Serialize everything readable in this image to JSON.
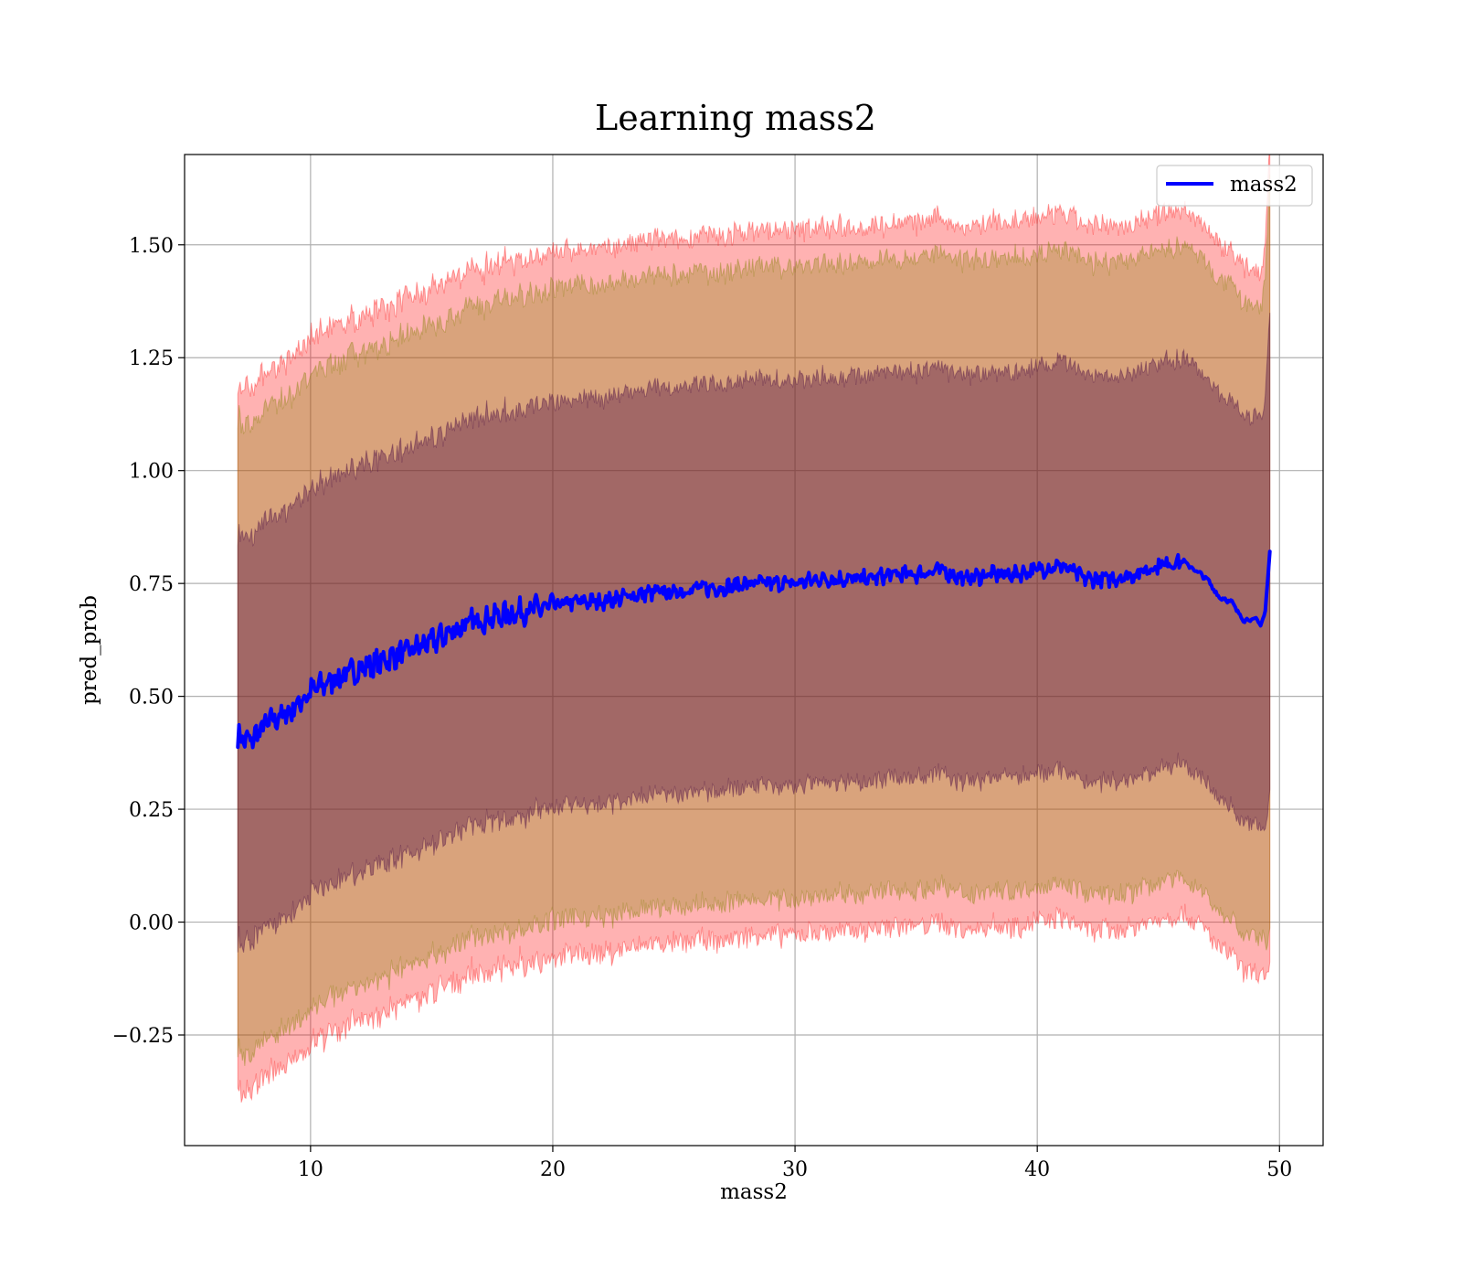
{
  "chart_data": {
    "type": "area",
    "title": "Learning mass2",
    "xlabel": "mass2",
    "ylabel": "pred_prob",
    "xlim": [
      4.8,
      51.8
    ],
    "ylim": [
      -0.495,
      1.7
    ],
    "xticks": [
      10,
      20,
      30,
      40,
      50
    ],
    "xtick_labels": [
      "10",
      "20",
      "30",
      "40",
      "50"
    ],
    "yticks": [
      -0.25,
      0.0,
      0.25,
      0.5,
      0.75,
      1.0,
      1.25,
      1.5
    ],
    "ytick_labels": [
      "−0.25",
      "0.00",
      "0.25",
      "0.50",
      "0.75",
      "1.00",
      "1.25",
      "1.50"
    ],
    "grid": true,
    "legend": {
      "position": "top-right",
      "entries": [
        "mass2"
      ]
    },
    "series": [
      {
        "name": "mass2",
        "color": "#0000ff",
        "x": [
          7.0,
          7.5,
          8.0,
          8.5,
          9.0,
          10.0,
          11.0,
          12.0,
          13.0,
          14.0,
          15.0,
          16.0,
          17.0,
          18.0,
          19.0,
          20.0,
          21.0,
          22.0,
          23.0,
          24.0,
          25.0,
          26.0,
          27.0,
          28.0,
          29.0,
          30.0,
          31.0,
          32.0,
          33.0,
          34.0,
          35.0,
          36.0,
          37.0,
          38.0,
          39.0,
          40.0,
          41.0,
          42.0,
          43.0,
          44.0,
          45.0,
          46.0,
          47.0,
          47.5,
          48.0,
          48.5,
          49.0,
          49.2,
          49.4,
          49.6
        ],
        "y": [
          0.41,
          0.4,
          0.43,
          0.45,
          0.46,
          0.51,
          0.54,
          0.56,
          0.58,
          0.6,
          0.62,
          0.65,
          0.67,
          0.68,
          0.69,
          0.7,
          0.71,
          0.71,
          0.72,
          0.73,
          0.73,
          0.74,
          0.74,
          0.75,
          0.75,
          0.75,
          0.76,
          0.76,
          0.76,
          0.77,
          0.77,
          0.78,
          0.76,
          0.77,
          0.77,
          0.78,
          0.79,
          0.76,
          0.76,
          0.77,
          0.79,
          0.8,
          0.76,
          0.72,
          0.71,
          0.67,
          0.67,
          0.66,
          0.68,
          0.82
        ],
        "noise": 0.014
      }
    ],
    "bands": [
      {
        "name": "",
        "color": "#ff0000",
        "opacity": 0.3,
        "half_width": 0.78,
        "noise": 0.022
      },
      {
        "name": "",
        "color": "#808000",
        "opacity": 0.3,
        "half_width": 0.7,
        "noise": 0.02
      },
      {
        "name": "",
        "color": "#400040",
        "opacity": 0.36,
        "half_width": 0.45,
        "noise": 0.018
      }
    ]
  }
}
